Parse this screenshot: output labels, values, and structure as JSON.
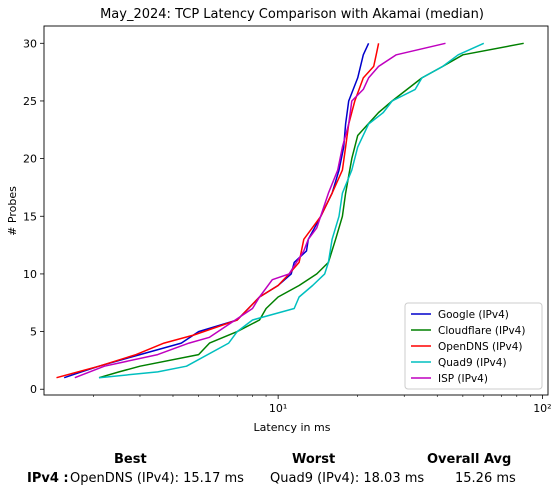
{
  "chart_data": {
    "type": "line",
    "title": "May_2024: TCP Latency Comparison with Akamai (median)",
    "xlabel": "Latency in ms",
    "ylabel": "# Probes",
    "x_scale": "log",
    "xlim": [
      1.3,
      105
    ],
    "ylim": [
      -0.5,
      31.5
    ],
    "x_ticks": [
      {
        "value": 10,
        "label": "10¹"
      },
      {
        "value": 100,
        "label": "10²"
      }
    ],
    "y_ticks": [
      0,
      5,
      10,
      15,
      20,
      25,
      30
    ],
    "grid": false,
    "legend_position": "lower-right",
    "series": [
      {
        "name": "Google (IPv4)",
        "color": "#0000cc",
        "points": [
          [
            1.55,
            1
          ],
          [
            1.8,
            1.5
          ],
          [
            2.1,
            2
          ],
          [
            3.0,
            3
          ],
          [
            4.3,
            4
          ],
          [
            5.0,
            5
          ],
          [
            7.0,
            6
          ],
          [
            8.5,
            8
          ],
          [
            10.0,
            9
          ],
          [
            11.2,
            10
          ],
          [
            11.5,
            11
          ],
          [
            12.8,
            12
          ],
          [
            13.0,
            13
          ],
          [
            14.5,
            15
          ],
          [
            16.0,
            17
          ],
          [
            17.0,
            19
          ],
          [
            17.7,
            21
          ],
          [
            18.0,
            23
          ],
          [
            18.5,
            25
          ],
          [
            20.0,
            27
          ],
          [
            21.0,
            29
          ],
          [
            22.0,
            30
          ]
        ]
      },
      {
        "name": "Cloudflare (IPv4)",
        "color": "#008000",
        "points": [
          [
            2.1,
            1
          ],
          [
            2.5,
            1.5
          ],
          [
            3.0,
            2
          ],
          [
            5.0,
            3
          ],
          [
            5.5,
            4
          ],
          [
            7.0,
            5
          ],
          [
            8.5,
            6
          ],
          [
            9.0,
            7
          ],
          [
            10.0,
            8
          ],
          [
            12.0,
            9
          ],
          [
            14.0,
            10
          ],
          [
            15.5,
            11
          ],
          [
            16.5,
            13
          ],
          [
            17.5,
            15
          ],
          [
            18.0,
            17
          ],
          [
            19.0,
            20
          ],
          [
            20.0,
            22
          ],
          [
            24.0,
            24
          ],
          [
            27.0,
            25
          ],
          [
            35.0,
            27
          ],
          [
            42.0,
            28
          ],
          [
            50.0,
            29
          ],
          [
            85.0,
            30
          ]
        ]
      },
      {
        "name": "OpenDNS (IPv4)",
        "color": "#ff0000",
        "points": [
          [
            1.45,
            1
          ],
          [
            1.75,
            1.5
          ],
          [
            2.1,
            2
          ],
          [
            2.9,
            3
          ],
          [
            3.7,
            4
          ],
          [
            4.8,
            4.7
          ],
          [
            7.0,
            6
          ],
          [
            8.5,
            8
          ],
          [
            10.0,
            9
          ],
          [
            11.0,
            10
          ],
          [
            12.0,
            11
          ],
          [
            12.5,
            13
          ],
          [
            14.5,
            15
          ],
          [
            16.0,
            17
          ],
          [
            17.5,
            19
          ],
          [
            18.0,
            21
          ],
          [
            18.5,
            23
          ],
          [
            19.5,
            25
          ],
          [
            21.0,
            27
          ],
          [
            23.0,
            28
          ],
          [
            23.5,
            29
          ],
          [
            24.0,
            30
          ]
        ]
      },
      {
        "name": "Quad9 (IPv4)",
        "color": "#00bfbf",
        "points": [
          [
            2.1,
            1
          ],
          [
            3.5,
            1.5
          ],
          [
            4.5,
            2
          ],
          [
            6.5,
            4
          ],
          [
            7.0,
            5
          ],
          [
            8.0,
            6
          ],
          [
            11.5,
            7
          ],
          [
            12.0,
            8
          ],
          [
            13.5,
            9
          ],
          [
            15.0,
            10
          ],
          [
            15.5,
            11
          ],
          [
            16.0,
            13
          ],
          [
            17.0,
            15
          ],
          [
            17.5,
            17
          ],
          [
            19.0,
            19
          ],
          [
            20.0,
            21
          ],
          [
            22.0,
            23
          ],
          [
            25.0,
            24
          ],
          [
            27.0,
            25
          ],
          [
            33.0,
            26
          ],
          [
            35.0,
            27
          ],
          [
            42.0,
            28
          ],
          [
            48.0,
            29
          ],
          [
            60.0,
            30
          ]
        ]
      },
      {
        "name": "ISP (IPv4)",
        "color": "#bf00bf",
        "points": [
          [
            1.7,
            1
          ],
          [
            2.2,
            2
          ],
          [
            3.5,
            3
          ],
          [
            4.6,
            4
          ],
          [
            5.5,
            4.5
          ],
          [
            8.0,
            7
          ],
          [
            8.5,
            8
          ],
          [
            9.5,
            9.5
          ],
          [
            11.0,
            10
          ],
          [
            12.5,
            12
          ],
          [
            13.0,
            13
          ],
          [
            14.0,
            14
          ],
          [
            15.5,
            17
          ],
          [
            16.8,
            19
          ],
          [
            17.5,
            21
          ],
          [
            18.5,
            23
          ],
          [
            19.0,
            25
          ],
          [
            21.0,
            26
          ],
          [
            22.0,
            27
          ],
          [
            24.0,
            28
          ],
          [
            28.0,
            29
          ],
          [
            43.0,
            30
          ]
        ]
      }
    ]
  },
  "summary": {
    "headers": {
      "best": "Best",
      "worst": "Worst",
      "overall": "Overall Avg"
    },
    "row_label": "IPv4 :",
    "best": "OpenDNS (IPv4): 15.17 ms",
    "worst": "Quad9 (IPv4): 18.03 ms",
    "overall": "15.26 ms"
  }
}
